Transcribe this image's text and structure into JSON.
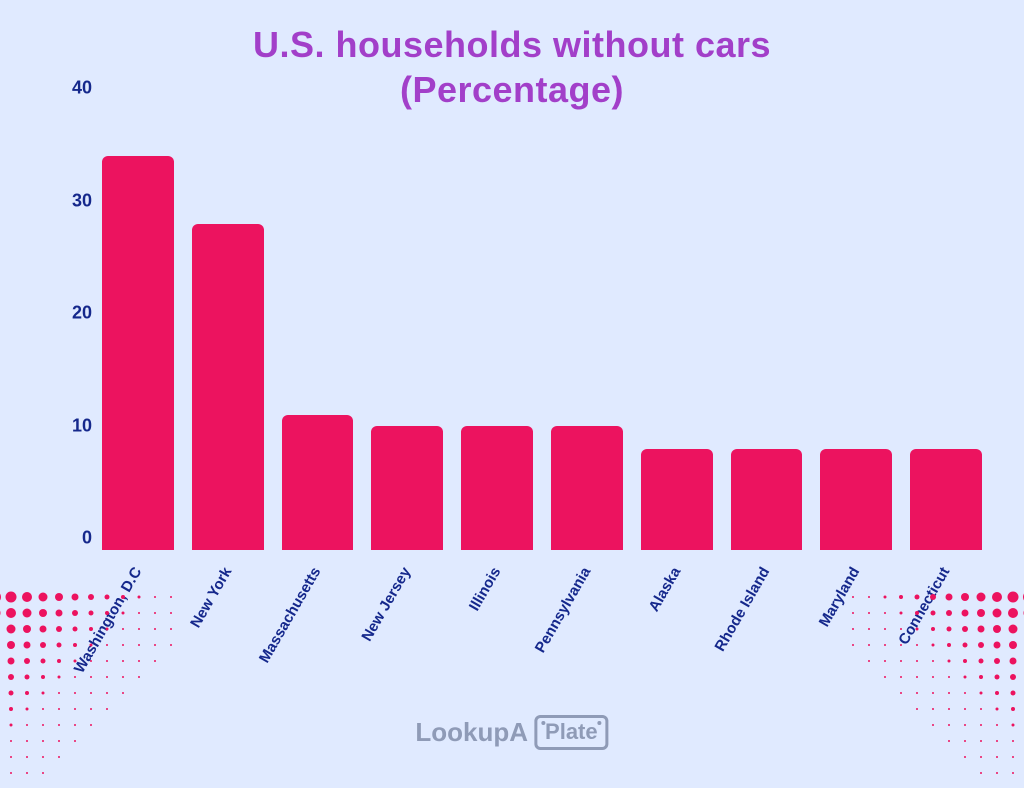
{
  "title_line1": "U.S. households without cars",
  "title_line2": "(Percentage)",
  "chart": {
    "type": "bar",
    "ylim": [
      0,
      40
    ],
    "yticks": [
      0,
      10,
      20,
      30,
      40
    ],
    "bar_color": "#ec135f",
    "bar_radius": 6,
    "background_color": "#e0eaff",
    "title_color": "#a23fc9",
    "axis_label_color": "#15288c",
    "title_fontsize": 36,
    "ytick_fontsize": 18,
    "xlabel_fontsize": 15,
    "xlabel_rotation_deg": -60,
    "categories": [
      "Washington, D.C",
      "New York",
      "Massachusetts",
      "New Jersey",
      "Illinois",
      "Pennsylvania",
      "Alaska",
      "Rhode Island",
      "Maryland",
      "Connecticut"
    ],
    "values": [
      35,
      29,
      12,
      11,
      11,
      11,
      9,
      9,
      9,
      9
    ]
  },
  "logo": {
    "text_a": "LookupA",
    "text_b": "Plate",
    "color": "#8f9bb7"
  },
  "decoration": {
    "dot_color": "#ec135f"
  }
}
